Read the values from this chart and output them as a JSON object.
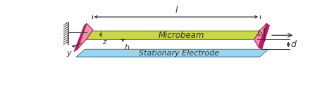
{
  "bg_color": "#ffffff",
  "beam_color": "#c8d84a",
  "beam_edge_color": "#7a8800",
  "electrode_color": "#9fd4ea",
  "electrode_edge_color": "#4488aa",
  "clamp_face_light": "#f090b0",
  "clamp_face_dark": "#cc1166",
  "text_color": "#333333",
  "arrow_color": "#333333",
  "wall_color": "#444444",
  "label_l": "l",
  "label_b": "b",
  "label_h": "h",
  "label_z": "z",
  "label_y": "y",
  "label_d": "d",
  "label_microbeam": "Microbeam",
  "label_electrode": "Stationary Electrode",
  "figsize": [
    4.74,
    1.24
  ],
  "dpi": 100
}
